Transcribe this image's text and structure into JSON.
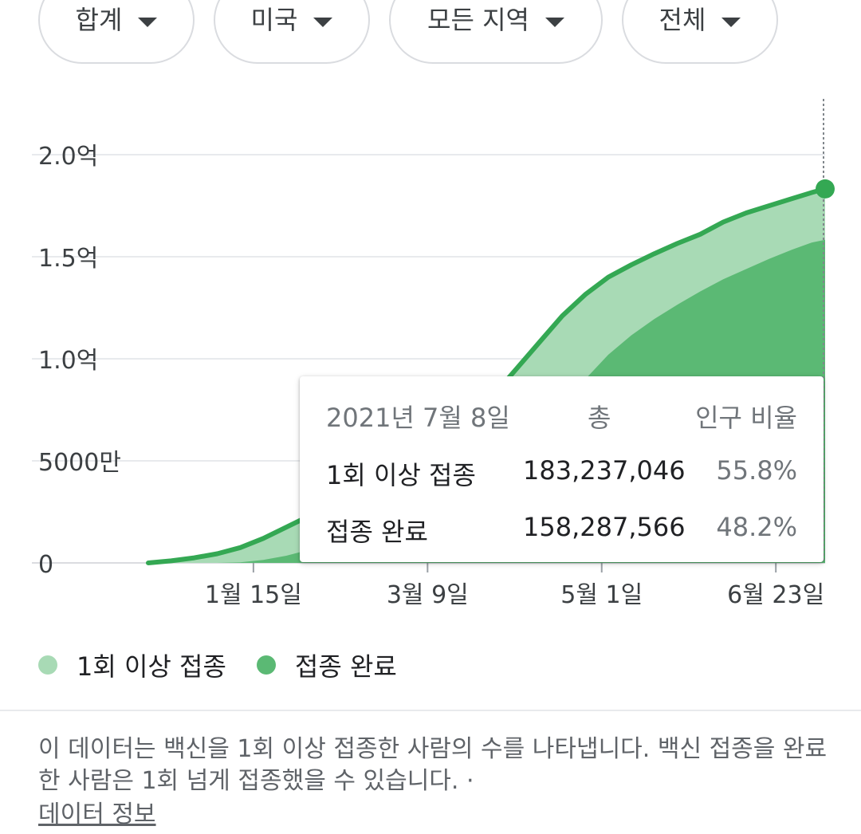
{
  "filters": [
    {
      "label": "합계"
    },
    {
      "label": "미국"
    },
    {
      "label": "모든 지역"
    },
    {
      "label": "전체"
    }
  ],
  "colors": {
    "at_least_one": "#a8dab5",
    "fully": "#5bb974",
    "line": "#34a853",
    "grid": "#e8eaed"
  },
  "chart_data": {
    "type": "area",
    "y_tick_labels": [
      "0",
      "5000만",
      "1.0억",
      "1.5억",
      "2.0억"
    ],
    "y_tick_values": [
      0,
      50000000,
      100000000,
      150000000,
      200000000
    ],
    "ylim": [
      0,
      200000000
    ],
    "x_tick_labels": [
      "1월 15일",
      "3월 9일",
      "5월 1일",
      "6월 23일"
    ],
    "x_tick_values": [
      "2021-01-15",
      "2021-03-09",
      "2021-05-01",
      "2021-06-23"
    ],
    "xlim": [
      "2020-12-14",
      "2021-07-08"
    ],
    "series": [
      {
        "name": "1회 이상 접종",
        "points": [
          [
            "2020-12-14",
            0
          ],
          [
            "2020-12-21",
            1000000
          ],
          [
            "2020-12-28",
            2500000
          ],
          [
            "2021-01-04",
            4500000
          ],
          [
            "2021-01-11",
            7500000
          ],
          [
            "2021-01-18",
            12000000
          ],
          [
            "2021-01-25",
            17500000
          ],
          [
            "2021-02-01",
            23000000
          ],
          [
            "2021-02-08",
            28000000
          ],
          [
            "2021-02-15",
            33000000
          ],
          [
            "2021-02-22",
            38500000
          ],
          [
            "2021-03-01",
            44000000
          ],
          [
            "2021-03-08",
            51500000
          ],
          [
            "2021-03-15",
            60000000
          ],
          [
            "2021-03-22",
            70500000
          ],
          [
            "2021-03-29",
            82000000
          ],
          [
            "2021-04-05",
            95000000
          ],
          [
            "2021-04-12",
            108000000
          ],
          [
            "2021-04-19",
            121000000
          ],
          [
            "2021-04-26",
            131500000
          ],
          [
            "2021-05-03",
            140000000
          ],
          [
            "2021-05-10",
            146000000
          ],
          [
            "2021-05-17",
            151500000
          ],
          [
            "2021-05-24",
            156500000
          ],
          [
            "2021-05-31",
            161000000
          ],
          [
            "2021-06-07",
            167000000
          ],
          [
            "2021-06-14",
            171500000
          ],
          [
            "2021-06-21",
            175000000
          ],
          [
            "2021-06-28",
            178500000
          ],
          [
            "2021-07-04",
            181500000
          ],
          [
            "2021-07-08",
            183237046
          ]
        ]
      },
      {
        "name": "접종 완료",
        "points": [
          [
            "2020-12-14",
            0
          ],
          [
            "2021-01-04",
            0
          ],
          [
            "2021-01-11",
            300000
          ],
          [
            "2021-01-18",
            1500000
          ],
          [
            "2021-01-25",
            3500000
          ],
          [
            "2021-02-01",
            6500000
          ],
          [
            "2021-02-08",
            10000000
          ],
          [
            "2021-02-15",
            14000000
          ],
          [
            "2021-02-22",
            18500000
          ],
          [
            "2021-03-01",
            23000000
          ],
          [
            "2021-03-08",
            28000000
          ],
          [
            "2021-03-15",
            34000000
          ],
          [
            "2021-03-22",
            41000000
          ],
          [
            "2021-03-29",
            49000000
          ],
          [
            "2021-04-05",
            57000000
          ],
          [
            "2021-04-12",
            67000000
          ],
          [
            "2021-04-19",
            78000000
          ],
          [
            "2021-04-26",
            90000000
          ],
          [
            "2021-05-03",
            102000000
          ],
          [
            "2021-05-10",
            111500000
          ],
          [
            "2021-05-17",
            119500000
          ],
          [
            "2021-05-24",
            126500000
          ],
          [
            "2021-05-31",
            133000000
          ],
          [
            "2021-06-07",
            139000000
          ],
          [
            "2021-06-14",
            144000000
          ],
          [
            "2021-06-21",
            149000000
          ],
          [
            "2021-06-28",
            153500000
          ],
          [
            "2021-07-04",
            157000000
          ],
          [
            "2021-07-08",
            158287566
          ]
        ]
      }
    ]
  },
  "tooltip": {
    "date": "2021년 7월 8일",
    "col_total": "총",
    "col_ratio": "인구 비율",
    "rows": [
      {
        "label": "1회 이상 접종",
        "total": "183,237,046",
        "ratio": "55.8%"
      },
      {
        "label": "접종 완료",
        "total": "158,287,566",
        "ratio": "48.2%"
      }
    ]
  },
  "legend": [
    {
      "label": "1회 이상 접종"
    },
    {
      "label": "접종 완료"
    }
  ],
  "note": {
    "text": "이 데이터는 백신을 1회 이상 접종한 사람의 수를 나타냅니다. 백신 접종을 완료한 사람은 1회 넘게 접종했을 수 있습니다.  ·",
    "link": "데이터 정보"
  }
}
